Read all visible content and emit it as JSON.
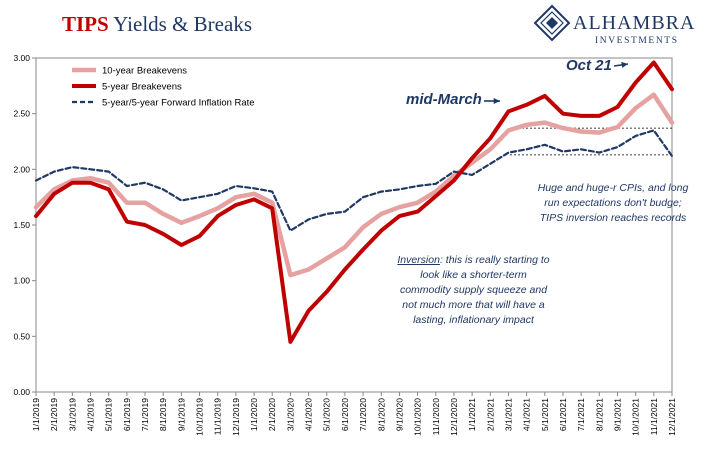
{
  "title": {
    "highlight": "TIPS",
    "rest": "Yields & Breaks"
  },
  "logo": {
    "name": "ALHAMBRA",
    "sub": "INVESTMENTS"
  },
  "annotations": {
    "oct21": "Oct 21",
    "mid_march": "mid-March",
    "huge": "Huge and huge-r CPIs, and long run expectations don't budge; TIPS inversion reaches records",
    "inversion_key": "Inversion",
    "inversion_rest": ": this is really starting to look like a shorter-term commodity supply squeeze and not much more that will have a lasting, inflationary impact"
  },
  "colors": {
    "breakeven10": "#e6a1a1",
    "breakeven5": "#c00000",
    "forward": "#1f3864",
    "annotation": "#1f3864"
  },
  "chart_data": {
    "type": "line",
    "title": "TIPS Yields & Breaks",
    "xlabel": "",
    "ylabel": "",
    "ylim": [
      0,
      3
    ],
    "y_ticks": [
      "0.00",
      "0.50",
      "1.00",
      "1.50",
      "2.00",
      "2.50",
      "3.00"
    ],
    "x_ticks": [
      "1/1/2019",
      "2/1/2019",
      "3/1/2019",
      "4/1/2019",
      "5/1/2019",
      "6/1/2019",
      "7/1/2019",
      "8/1/2019",
      "9/1/2019",
      "10/1/2019",
      "11/1/2019",
      "12/1/2019",
      "1/1/2020",
      "2/1/2020",
      "3/1/2020",
      "4/1/2020",
      "5/1/2020",
      "6/1/2020",
      "7/1/2020",
      "8/1/2020",
      "9/1/2020",
      "10/1/2020",
      "11/1/2020",
      "12/1/2020",
      "1/1/2021",
      "2/1/2021",
      "3/1/2021",
      "4/1/2021",
      "5/1/2021",
      "6/1/2021",
      "7/1/2021",
      "8/1/2021",
      "9/1/2021",
      "10/1/2021",
      "11/1/2021",
      "12/1/2021"
    ],
    "legend": "top-left",
    "grid": false,
    "reference_lines": [
      2.37,
      2.13
    ],
    "series": [
      {
        "name": "10-year Breakevens",
        "values": [
          1.66,
          1.82,
          1.9,
          1.92,
          1.88,
          1.7,
          1.7,
          1.6,
          1.52,
          1.58,
          1.65,
          1.75,
          1.78,
          1.7,
          1.05,
          1.1,
          1.2,
          1.3,
          1.48,
          1.6,
          1.66,
          1.7,
          1.8,
          1.94,
          2.06,
          2.18,
          2.35,
          2.4,
          2.42,
          2.37,
          2.34,
          2.33,
          2.38,
          2.55,
          2.67,
          2.42
        ]
      },
      {
        "name": "5-year Breakevens",
        "values": [
          1.58,
          1.78,
          1.88,
          1.88,
          1.82,
          1.53,
          1.5,
          1.42,
          1.32,
          1.4,
          1.58,
          1.68,
          1.73,
          1.65,
          0.45,
          0.73,
          0.9,
          1.1,
          1.28,
          1.45,
          1.58,
          1.62,
          1.76,
          1.9,
          2.1,
          2.28,
          2.52,
          2.58,
          2.66,
          2.5,
          2.48,
          2.48,
          2.56,
          2.78,
          2.96,
          2.72
        ]
      },
      {
        "name": "5-year/5-year Forward Inflation Rate",
        "values": [
          1.9,
          1.98,
          2.02,
          2.0,
          1.98,
          1.85,
          1.88,
          1.82,
          1.72,
          1.75,
          1.78,
          1.85,
          1.83,
          1.8,
          1.45,
          1.55,
          1.6,
          1.62,
          1.75,
          1.8,
          1.82,
          1.85,
          1.87,
          1.98,
          1.95,
          2.05,
          2.15,
          2.18,
          2.22,
          2.16,
          2.18,
          2.15,
          2.2,
          2.3,
          2.35,
          2.12
        ]
      }
    ]
  }
}
